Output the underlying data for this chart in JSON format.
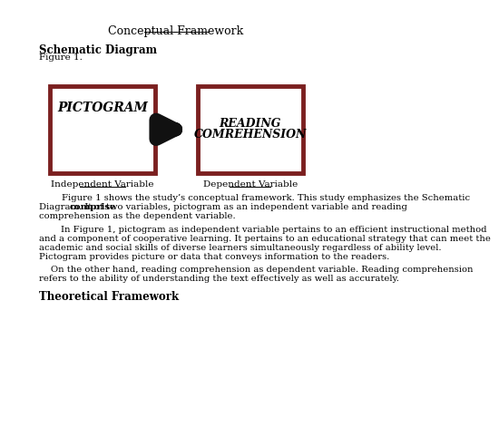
{
  "title": "Conceptual Framework",
  "schematic_label": "Schematic Diagram",
  "figure_label": "Figure 1.",
  "box1_text": "PICTOGRAM",
  "box2_line1": "READING",
  "box2_line2": "COMREHENSION",
  "box1_sublabel": "Independent Variable",
  "box2_sublabel": "Dependent Variable",
  "box_border_color": "#7B2020",
  "box_fill_color": "#FFFFFF",
  "arrow_color": "#111111",
  "background_color": "#FFFFFF",
  "p1_line1": "Figure 1 shows the study’s conceptual framework. This study emphasizes the Schematic",
  "p1_line2_pre": "Diagram. It ",
  "p1_line2_bold": "comprise",
  "p1_line2_post": " of two variables, pictogram as an independent variable and reading",
  "p1_line3": "comprehension as the dependent variable.",
  "p2_line1": "In Figure 1, pictogram as independent variable pertains to an efficient instructional method",
  "p2_line2": "and a component of cooperative learning. It pertains to an educational strategy that can meet the",
  "p2_line3": "academic and social skills of diverse learners simultaneously regardless of ability level.",
  "p2_line4": "Pictogram provides picture or data that conveys information to the readers.",
  "p3_line1": "On the other hand, reading comprehension as dependent variable. Reading comprehension",
  "p3_line2": "refers to the ability of understanding the text effectively as well as accurately.",
  "section_label": "Theoretical Framework",
  "font_size_title": 9,
  "font_size_body": 7.2,
  "font_size_box1": 10,
  "font_size_box2": 9,
  "font_size_sublabel": 7.5,
  "font_size_section": 8.5,
  "font_size_fig": 7.5
}
